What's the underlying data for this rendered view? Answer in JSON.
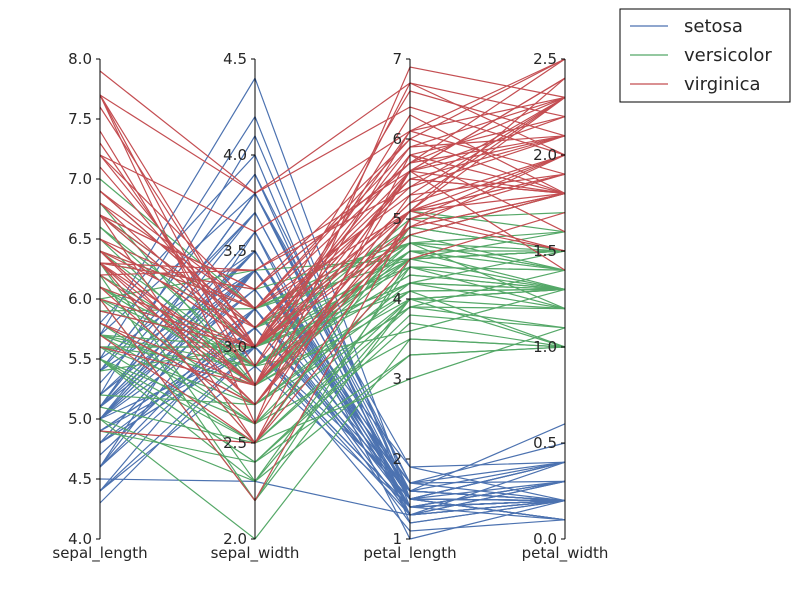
{
  "chart_data": {
    "type": "parallel_coordinates",
    "title": "",
    "axes": [
      {
        "name": "sepal_length",
        "range": [
          4.0,
          8.0
        ],
        "ticks": [
          "4.0",
          "4.5",
          "5.0",
          "5.5",
          "6.0",
          "6.5",
          "7.0",
          "7.5",
          "8.0"
        ],
        "tick_values": [
          4.0,
          4.5,
          5.0,
          5.5,
          6.0,
          6.5,
          7.0,
          7.5,
          8.0
        ]
      },
      {
        "name": "sepal_width",
        "range": [
          2.0,
          4.5
        ],
        "ticks": [
          "2.0",
          "2.5",
          "3.0",
          "3.5",
          "4.0",
          "4.5"
        ],
        "tick_values": [
          2.0,
          2.5,
          3.0,
          3.5,
          4.0,
          4.5
        ]
      },
      {
        "name": "petal_length",
        "range": [
          1,
          7
        ],
        "ticks": [
          "1",
          "2",
          "3",
          "4",
          "5",
          "6",
          "7"
        ],
        "tick_values": [
          1,
          2,
          3,
          4,
          5,
          6,
          7
        ]
      },
      {
        "name": "petal_width",
        "range": [
          0.0,
          2.5
        ],
        "ticks": [
          "0.0",
          "0.5",
          "1.0",
          "1.5",
          "2.0",
          "2.5"
        ],
        "tick_values": [
          0.0,
          0.5,
          1.0,
          1.5,
          2.0,
          2.5
        ]
      }
    ],
    "legend": {
      "placement": "top-right outside"
    },
    "series": [
      {
        "name": "setosa",
        "color": "#4c72b0",
        "lines": [
          [
            5.1,
            3.5,
            1.4,
            0.2
          ],
          [
            4.9,
            3.0,
            1.4,
            0.2
          ],
          [
            4.7,
            3.2,
            1.3,
            0.2
          ],
          [
            4.6,
            3.1,
            1.5,
            0.2
          ],
          [
            5.0,
            3.6,
            1.4,
            0.2
          ],
          [
            5.4,
            3.9,
            1.7,
            0.4
          ],
          [
            4.6,
            3.4,
            1.4,
            0.3
          ],
          [
            5.0,
            3.4,
            1.5,
            0.2
          ],
          [
            4.4,
            2.9,
            1.4,
            0.2
          ],
          [
            4.9,
            3.1,
            1.5,
            0.1
          ],
          [
            5.4,
            3.7,
            1.5,
            0.2
          ],
          [
            4.8,
            3.4,
            1.6,
            0.2
          ],
          [
            4.8,
            3.0,
            1.4,
            0.1
          ],
          [
            4.3,
            3.0,
            1.1,
            0.1
          ],
          [
            5.8,
            4.0,
            1.2,
            0.2
          ],
          [
            5.7,
            4.4,
            1.5,
            0.4
          ],
          [
            5.4,
            3.9,
            1.3,
            0.4
          ],
          [
            5.1,
            3.5,
            1.4,
            0.3
          ],
          [
            5.7,
            3.8,
            1.7,
            0.3
          ],
          [
            5.1,
            3.8,
            1.5,
            0.3
          ],
          [
            5.4,
            3.4,
            1.7,
            0.2
          ],
          [
            5.1,
            3.7,
            1.5,
            0.4
          ],
          [
            4.6,
            3.6,
            1.0,
            0.2
          ],
          [
            5.1,
            3.3,
            1.7,
            0.5
          ],
          [
            4.8,
            3.4,
            1.9,
            0.2
          ],
          [
            5.0,
            3.0,
            1.6,
            0.2
          ],
          [
            5.0,
            3.4,
            1.6,
            0.4
          ],
          [
            5.2,
            3.5,
            1.5,
            0.2
          ],
          [
            5.2,
            3.4,
            1.4,
            0.2
          ],
          [
            4.7,
            3.2,
            1.6,
            0.2
          ],
          [
            4.8,
            3.1,
            1.6,
            0.2
          ],
          [
            5.4,
            3.4,
            1.5,
            0.4
          ],
          [
            5.2,
            4.1,
            1.5,
            0.1
          ],
          [
            5.5,
            4.2,
            1.4,
            0.2
          ],
          [
            4.9,
            3.1,
            1.5,
            0.1
          ],
          [
            5.0,
            3.2,
            1.2,
            0.2
          ],
          [
            5.5,
            3.5,
            1.3,
            0.2
          ],
          [
            4.9,
            3.1,
            1.5,
            0.1
          ],
          [
            4.4,
            3.0,
            1.3,
            0.2
          ],
          [
            5.1,
            3.4,
            1.5,
            0.2
          ],
          [
            5.0,
            3.5,
            1.3,
            0.3
          ],
          [
            4.5,
            2.3,
            1.3,
            0.3
          ],
          [
            4.4,
            3.2,
            1.3,
            0.2
          ],
          [
            5.0,
            3.5,
            1.6,
            0.6
          ],
          [
            5.1,
            3.8,
            1.9,
            0.4
          ],
          [
            4.8,
            3.0,
            1.4,
            0.3
          ],
          [
            5.1,
            3.8,
            1.6,
            0.2
          ],
          [
            4.6,
            3.2,
            1.4,
            0.2
          ],
          [
            5.3,
            3.7,
            1.5,
            0.2
          ],
          [
            5.0,
            3.3,
            1.4,
            0.2
          ]
        ]
      },
      {
        "name": "versicolor",
        "color": "#55a868",
        "lines": [
          [
            7.0,
            3.2,
            4.7,
            1.4
          ],
          [
            6.4,
            3.2,
            4.5,
            1.5
          ],
          [
            6.9,
            3.1,
            4.9,
            1.5
          ],
          [
            5.5,
            2.3,
            4.0,
            1.3
          ],
          [
            6.5,
            2.8,
            4.6,
            1.5
          ],
          [
            5.7,
            2.8,
            4.5,
            1.3
          ],
          [
            6.3,
            3.3,
            4.7,
            1.6
          ],
          [
            4.9,
            2.4,
            3.3,
            1.0
          ],
          [
            6.6,
            2.9,
            4.6,
            1.3
          ],
          [
            5.2,
            2.7,
            3.9,
            1.4
          ],
          [
            5.0,
            2.0,
            3.5,
            1.0
          ],
          [
            5.9,
            3.0,
            4.2,
            1.5
          ],
          [
            6.0,
            2.2,
            4.0,
            1.0
          ],
          [
            6.1,
            2.9,
            4.7,
            1.4
          ],
          [
            5.6,
            2.9,
            3.6,
            1.3
          ],
          [
            6.7,
            3.1,
            4.4,
            1.4
          ],
          [
            5.6,
            3.0,
            4.5,
            1.5
          ],
          [
            5.8,
            2.7,
            4.1,
            1.0
          ],
          [
            6.2,
            2.2,
            4.5,
            1.5
          ],
          [
            5.6,
            2.5,
            3.9,
            1.1
          ],
          [
            5.9,
            3.2,
            4.8,
            1.8
          ],
          [
            6.1,
            2.8,
            4.0,
            1.3
          ],
          [
            6.3,
            2.5,
            4.9,
            1.5
          ],
          [
            6.1,
            2.8,
            4.7,
            1.2
          ],
          [
            6.4,
            2.9,
            4.3,
            1.3
          ],
          [
            6.6,
            3.0,
            4.4,
            1.4
          ],
          [
            6.8,
            2.8,
            4.8,
            1.4
          ],
          [
            6.7,
            3.0,
            5.0,
            1.7
          ],
          [
            6.0,
            2.9,
            4.5,
            1.5
          ],
          [
            5.7,
            2.6,
            3.5,
            1.0
          ],
          [
            5.5,
            2.4,
            3.8,
            1.1
          ],
          [
            5.5,
            2.4,
            3.7,
            1.0
          ],
          [
            5.8,
            2.7,
            3.9,
            1.2
          ],
          [
            6.0,
            2.7,
            5.1,
            1.6
          ],
          [
            5.4,
            3.0,
            4.5,
            1.5
          ],
          [
            6.0,
            3.4,
            4.5,
            1.6
          ],
          [
            6.7,
            3.1,
            4.7,
            1.5
          ],
          [
            6.3,
            2.3,
            4.4,
            1.3
          ],
          [
            5.6,
            3.0,
            4.1,
            1.3
          ],
          [
            5.5,
            2.5,
            4.0,
            1.3
          ],
          [
            5.5,
            2.6,
            4.4,
            1.2
          ],
          [
            6.1,
            3.0,
            4.6,
            1.4
          ],
          [
            5.8,
            2.6,
            4.0,
            1.2
          ],
          [
            5.0,
            2.3,
            3.3,
            1.0
          ],
          [
            5.6,
            2.7,
            4.2,
            1.3
          ],
          [
            5.7,
            3.0,
            4.2,
            1.2
          ],
          [
            5.7,
            2.9,
            4.2,
            1.3
          ],
          [
            6.2,
            2.9,
            4.3,
            1.3
          ],
          [
            5.1,
            2.5,
            3.0,
            1.1
          ],
          [
            5.7,
            2.8,
            4.1,
            1.3
          ]
        ]
      },
      {
        "name": "virginica",
        "color": "#c44e52",
        "lines": [
          [
            6.3,
            3.3,
            6.0,
            2.5
          ],
          [
            5.8,
            2.7,
            5.1,
            1.9
          ],
          [
            7.1,
            3.0,
            5.9,
            2.1
          ],
          [
            6.3,
            2.9,
            5.6,
            1.8
          ],
          [
            6.5,
            3.0,
            5.8,
            2.2
          ],
          [
            7.6,
            3.0,
            6.6,
            2.1
          ],
          [
            4.9,
            2.5,
            4.5,
            1.7
          ],
          [
            7.3,
            2.9,
            6.3,
            1.8
          ],
          [
            6.7,
            2.5,
            5.8,
            1.8
          ],
          [
            7.2,
            3.6,
            6.1,
            2.5
          ],
          [
            6.5,
            3.2,
            5.1,
            2.0
          ],
          [
            6.4,
            2.7,
            5.3,
            1.9
          ],
          [
            6.8,
            3.0,
            5.5,
            2.1
          ],
          [
            5.7,
            2.5,
            5.0,
            2.0
          ],
          [
            5.8,
            2.8,
            5.1,
            2.4
          ],
          [
            6.4,
            3.2,
            5.3,
            2.3
          ],
          [
            6.5,
            3.0,
            5.5,
            1.8
          ],
          [
            7.7,
            3.8,
            6.7,
            2.2
          ],
          [
            7.7,
            2.6,
            6.9,
            2.3
          ],
          [
            6.0,
            2.2,
            5.0,
            1.5
          ],
          [
            6.9,
            3.2,
            5.7,
            2.3
          ],
          [
            5.6,
            2.8,
            4.9,
            2.0
          ],
          [
            7.7,
            2.8,
            6.7,
            2.0
          ],
          [
            6.3,
            2.7,
            4.9,
            1.8
          ],
          [
            6.7,
            3.3,
            5.7,
            2.1
          ],
          [
            7.2,
            3.2,
            6.0,
            1.8
          ],
          [
            6.2,
            2.8,
            4.8,
            1.8
          ],
          [
            6.1,
            3.0,
            4.9,
            1.8
          ],
          [
            6.4,
            2.8,
            5.6,
            2.1
          ],
          [
            7.2,
            3.0,
            5.8,
            1.6
          ],
          [
            7.4,
            2.8,
            6.1,
            1.9
          ],
          [
            7.9,
            3.8,
            6.4,
            2.0
          ],
          [
            6.4,
            2.8,
            5.6,
            2.2
          ],
          [
            6.3,
            2.8,
            5.1,
            1.5
          ],
          [
            6.1,
            2.6,
            5.6,
            1.4
          ],
          [
            7.7,
            3.0,
            6.1,
            2.3
          ],
          [
            6.3,
            3.4,
            5.6,
            2.4
          ],
          [
            6.4,
            3.1,
            5.5,
            1.8
          ],
          [
            6.0,
            3.0,
            4.8,
            1.8
          ],
          [
            6.9,
            3.1,
            5.4,
            2.1
          ],
          [
            6.7,
            3.1,
            5.6,
            2.4
          ],
          [
            6.9,
            3.1,
            5.1,
            2.3
          ],
          [
            5.8,
            2.7,
            5.1,
            1.9
          ],
          [
            6.8,
            3.2,
            5.9,
            2.3
          ],
          [
            6.7,
            3.3,
            5.7,
            2.5
          ],
          [
            6.7,
            3.0,
            5.2,
            2.3
          ],
          [
            6.3,
            2.5,
            5.0,
            1.9
          ],
          [
            6.5,
            3.0,
            5.2,
            2.0
          ],
          [
            6.2,
            3.4,
            5.4,
            2.3
          ],
          [
            5.9,
            3.0,
            5.1,
            1.8
          ]
        ]
      }
    ]
  }
}
